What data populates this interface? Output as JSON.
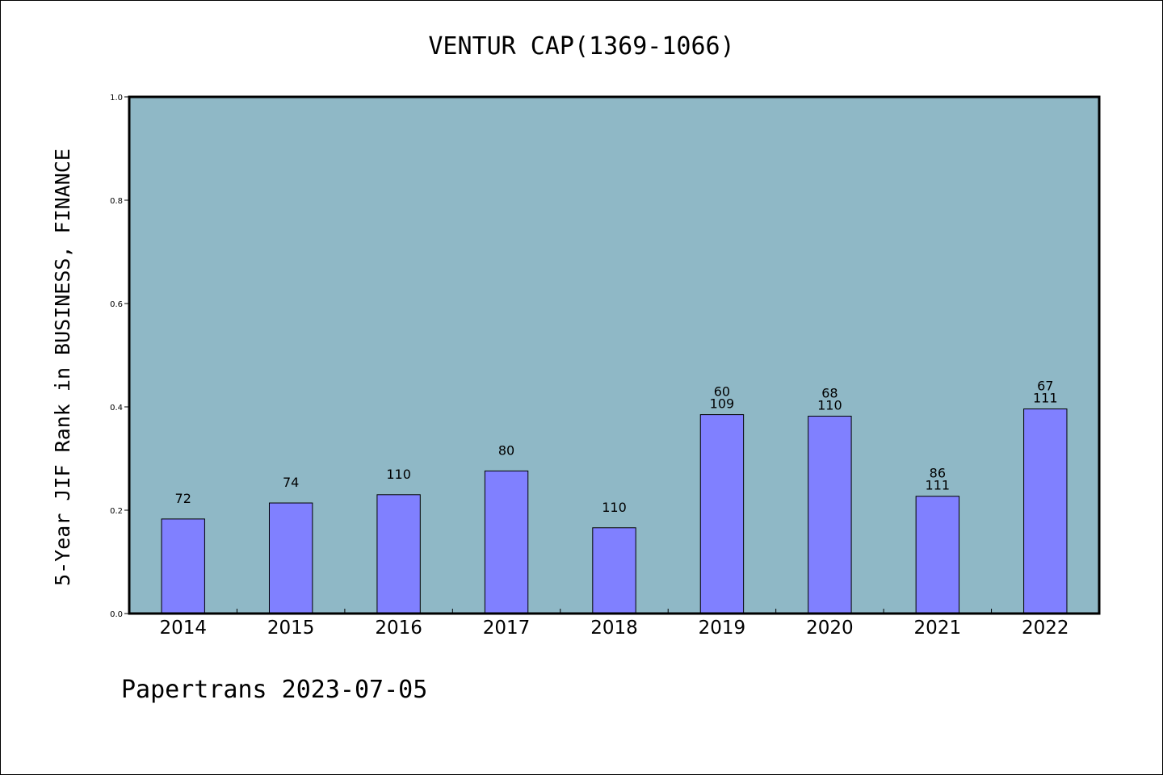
{
  "chart_data": {
    "type": "bar",
    "title": "VENTUR CAP(1369-1066)",
    "xlabel": "",
    "ylabel": "5-Year JIF Rank in BUSINESS, FINANCE",
    "ylim": [
      0.0,
      1.0
    ],
    "yticks": [
      "0.0",
      "0.2",
      "0.4",
      "0.6",
      "0.8",
      "1.0"
    ],
    "categories": [
      "2014",
      "2015",
      "2016",
      "2017",
      "2018",
      "2019",
      "2020",
      "2021",
      "2022"
    ],
    "values": [
      0.183,
      0.214,
      0.23,
      0.276,
      0.166,
      0.385,
      0.382,
      0.227,
      0.396
    ],
    "labels": [
      [
        "72"
      ],
      [
        "74"
      ],
      [
        "110"
      ],
      [
        "80"
      ],
      [
        "110"
      ],
      [
        "60",
        "109"
      ],
      [
        "68",
        "110"
      ],
      [
        "86",
        "111"
      ],
      [
        "67",
        "111"
      ]
    ],
    "plot_background": "#8fb8c6",
    "bar_color": "#8080ff",
    "grid": false,
    "footer": "Papertrans 2023-07-05"
  }
}
